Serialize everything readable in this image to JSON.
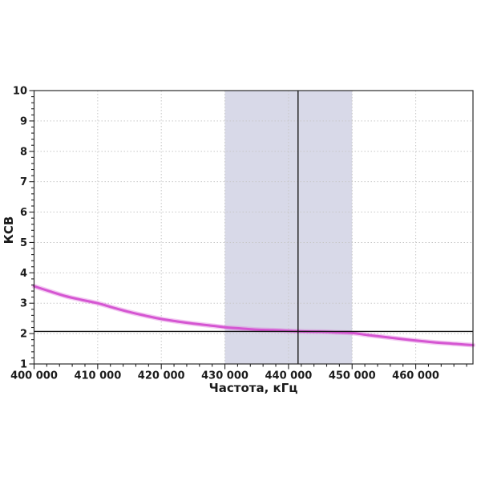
{
  "window": {
    "background": "#ffffff"
  },
  "chart_data": {
    "type": "line",
    "title": "",
    "xlabel": "Частота, кГц",
    "ylabel": "КСВ",
    "x_range": [
      400000,
      469000
    ],
    "y_range": [
      1,
      10
    ],
    "x_major_ticks": [
      400000,
      410000,
      420000,
      430000,
      440000,
      450000,
      460000
    ],
    "x_tick_labels": [
      "400 000",
      "410 000",
      "420 000",
      "430 000",
      "440 000",
      "450 000",
      "460 000"
    ],
    "x_minor_step": 2000,
    "y_major_ticks": [
      1,
      2,
      3,
      4,
      5,
      6,
      7,
      8,
      9,
      10
    ],
    "y_tick_labels": [
      "1",
      "2",
      "3",
      "4",
      "5",
      "6",
      "7",
      "8",
      "9",
      "10"
    ],
    "y_minor_step": 0.2,
    "grid": "dotted",
    "grid_color": "#c7c7c7",
    "legend_position": "none",
    "band": {
      "from": 430000,
      "to": 450000,
      "color": "#d8d9e8"
    },
    "crosshair": {
      "frequency_khz": 441500,
      "swr": 2.07,
      "color": "#161616"
    },
    "series": [
      {
        "name": "КСВ",
        "color": "#d556d2",
        "glow_color": "rgba(221,108,217,0.35)",
        "points": [
          [
            400000,
            3.56
          ],
          [
            402500,
            3.39
          ],
          [
            405000,
            3.23
          ],
          [
            407500,
            3.11
          ],
          [
            410000,
            3.0
          ],
          [
            412500,
            2.85
          ],
          [
            415000,
            2.71
          ],
          [
            417500,
            2.59
          ],
          [
            420000,
            2.48
          ],
          [
            422500,
            2.4
          ],
          [
            425000,
            2.33
          ],
          [
            427500,
            2.27
          ],
          [
            430000,
            2.21
          ],
          [
            432500,
            2.17
          ],
          [
            435000,
            2.13
          ],
          [
            437500,
            2.11
          ],
          [
            440000,
            2.09
          ],
          [
            442500,
            2.07
          ],
          [
            445000,
            2.06
          ],
          [
            447500,
            2.04
          ],
          [
            450000,
            2.02
          ],
          [
            452500,
            1.95
          ],
          [
            455000,
            1.89
          ],
          [
            457500,
            1.83
          ],
          [
            460000,
            1.77
          ],
          [
            462500,
            1.72
          ],
          [
            465000,
            1.68
          ],
          [
            467000,
            1.65
          ],
          [
            469000,
            1.62
          ]
        ]
      }
    ]
  }
}
